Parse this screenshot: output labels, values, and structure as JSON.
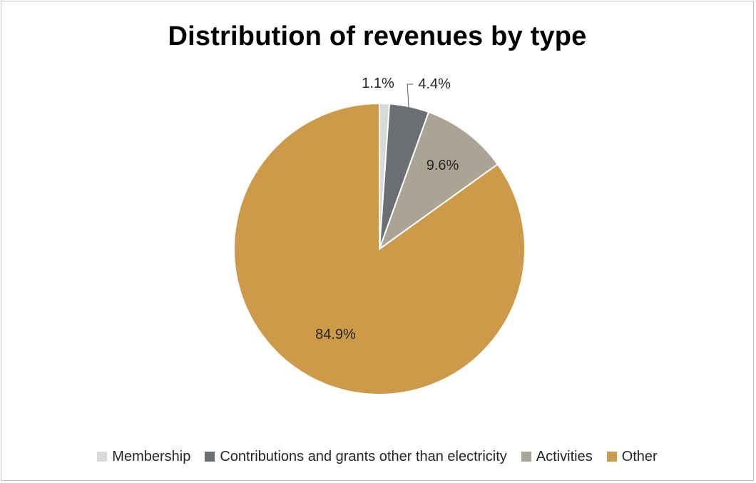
{
  "chart_data": {
    "type": "pie",
    "title": "Distribution of revenues by type",
    "slices": [
      {
        "name": "Membership",
        "value": 1.1,
        "label": "1.1%",
        "color": "#d9d9d9"
      },
      {
        "name": "Contributions and grants other than electricity",
        "value": 4.4,
        "label": "4.4%",
        "color": "#6b6e72"
      },
      {
        "name": "Activities",
        "value": 9.6,
        "label": "9.6%",
        "color": "#aba393"
      },
      {
        "name": "Other",
        "value": 84.9,
        "label": "84.9%",
        "color": "#cd9a4a"
      }
    ],
    "legend_position": "bottom"
  }
}
